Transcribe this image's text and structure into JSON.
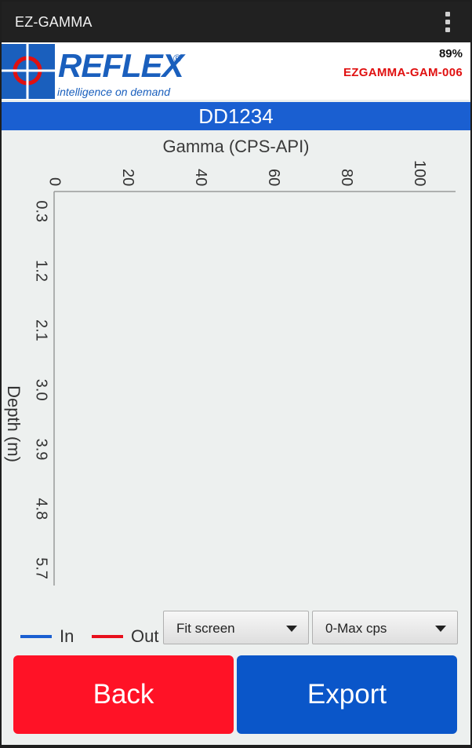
{
  "app": {
    "title": "EZ-GAMMA"
  },
  "header": {
    "logo_text": "REFLEX",
    "logo_reg": "®",
    "logo_tagline": "intelligence on demand",
    "battery": "89%",
    "device_id": "EZGAMMA-GAM-006"
  },
  "hole_id": "DD1234",
  "chart_data": {
    "type": "line",
    "title": "Gamma (CPS-API)",
    "ylabel": "Depth (m)",
    "x_ticks": [
      0,
      20,
      40,
      60,
      80,
      100
    ],
    "x_range": [
      0,
      110
    ],
    "y_ticks": [
      "0.3",
      "1.2",
      "2.1",
      "3.0",
      "3.9",
      "4.8",
      "5.7"
    ],
    "y_range": [
      0,
      5.96
    ],
    "grid": false,
    "series": [
      {
        "name": "In",
        "color": "#1a5fd1",
        "points": []
      },
      {
        "name": "Out",
        "color": "#e8101c",
        "points": []
      }
    ]
  },
  "legend": {
    "in_label": "In",
    "out_label": "Out",
    "in_color": "#1a5fd1",
    "out_color": "#e8101c"
  },
  "controls": {
    "zoom_value": "Fit screen",
    "scale_value": "0-Max cps"
  },
  "buttons": {
    "back": "Back",
    "export": "Export"
  }
}
